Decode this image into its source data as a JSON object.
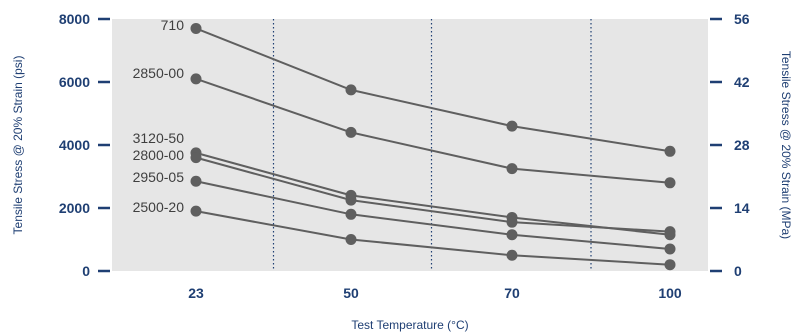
{
  "chart_data": {
    "type": "line",
    "title": "",
    "xlabel": "Test Temperature (°C)",
    "ylabel": "Tensile Stress @ 20% Strain (psi)",
    "ylabel_right": "Tensile Stress @ 20% Strain (MPa)",
    "categories": [
      "23",
      "50",
      "70",
      "100"
    ],
    "ylim": [
      0,
      8000
    ],
    "y_ticks": [
      "0",
      "2000",
      "4000",
      "6000",
      "8000"
    ],
    "ylim_right": [
      0,
      56
    ],
    "y_ticks_right": [
      "0",
      "14",
      "28",
      "42",
      "56"
    ],
    "grid": "vertical dotted separators between categories",
    "legend": "labels at start of each line",
    "series": [
      {
        "name": "710",
        "values": [
          7700,
          5750,
          4600,
          3800
        ]
      },
      {
        "name": "2850-00",
        "values": [
          6100,
          4400,
          3250,
          2800
        ]
      },
      {
        "name": "3120-50",
        "values": [
          3750,
          2400,
          1700,
          1150
        ]
      },
      {
        "name": "2800-00",
        "values": [
          3600,
          2250,
          1550,
          1250
        ]
      },
      {
        "name": "2950-05",
        "values": [
          2850,
          1800,
          1150,
          700
        ]
      },
      {
        "name": "2500-20",
        "values": [
          1900,
          1000,
          500,
          200
        ]
      }
    ],
    "colors": {
      "background": "#e6e6e6",
      "line": "#5f5f5f",
      "axis": "#1f3f73",
      "grid": "#1f3f73"
    }
  }
}
